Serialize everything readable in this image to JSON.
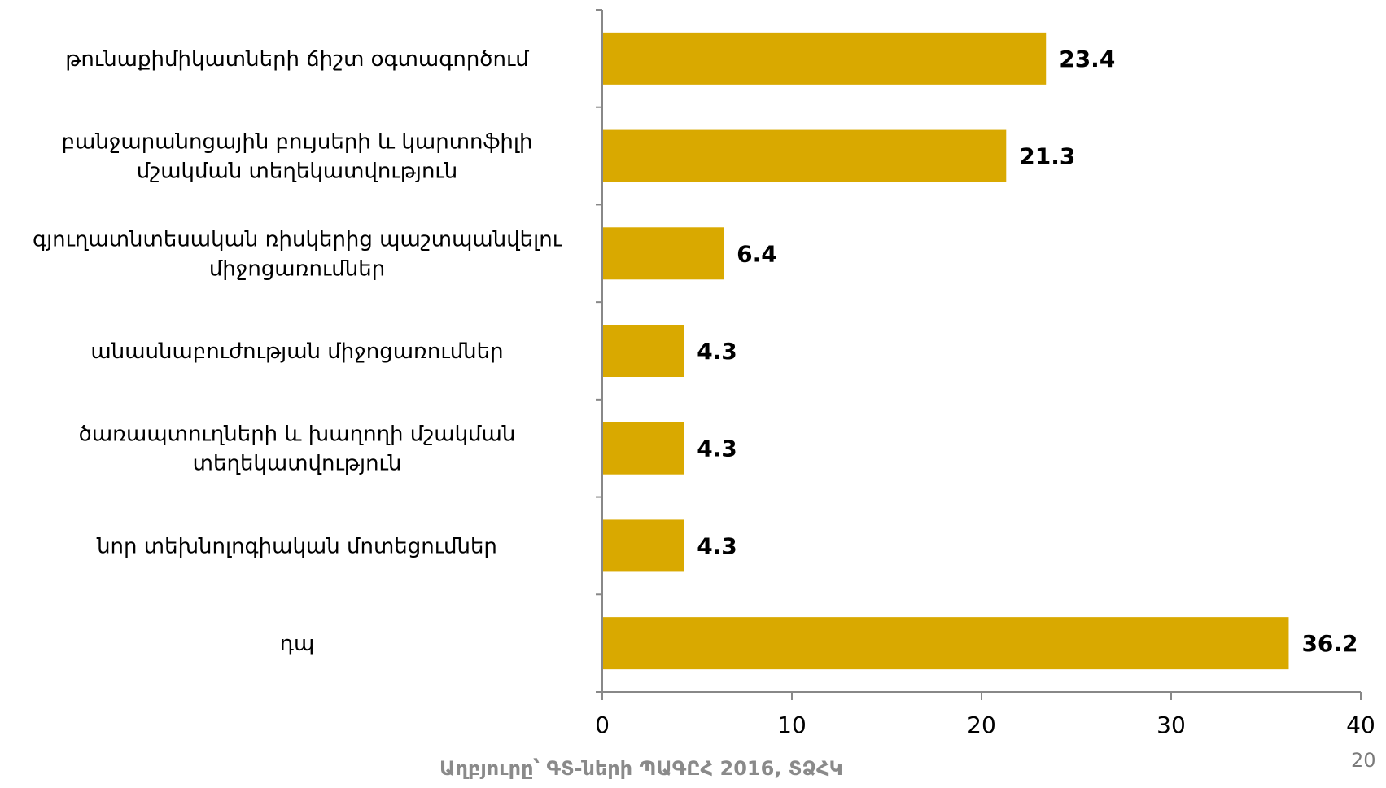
{
  "chart_data": {
    "type": "bar",
    "orientation": "horizontal",
    "categories": [
      [
        "թունաքիմիկատների ճիշտ օգտագործում"
      ],
      [
        "բանջարանոցային բույսերի և կարտոֆիլի",
        "մշակման տեղեկատվություն"
      ],
      [
        "գյուղատնտեսական ռիսկերից պաշտպանվելու",
        "միջոցառումներ"
      ],
      [
        "անասնաբուժության միջոցառումներ"
      ],
      [
        "ծառապտուղների և խաղողի մշակման",
        "տեղեկատվություն"
      ],
      [
        "նոր տեխնոլոգիական մոտեցումներ"
      ],
      [
        "դպ"
      ]
    ],
    "values": [
      23.4,
      21.3,
      6.4,
      4.3,
      4.3,
      4.3,
      36.2
    ],
    "value_labels": [
      "23.4",
      "21.3",
      "6.4",
      "4.3",
      "4.3",
      "4.3",
      "36.2"
    ],
    "xlim": [
      0,
      40
    ],
    "xticks": [
      0,
      10,
      20,
      30,
      40
    ],
    "tick_labels": [
      "0",
      "10",
      "20",
      "30",
      "40"
    ],
    "title": "",
    "xlabel": "",
    "ylabel": "",
    "grid": false,
    "legend": "none",
    "colors": {
      "bar": "#d9a900",
      "axis": "#888888"
    }
  },
  "footer": {
    "source": "Աղբյուրը՝ ԳՏ-ների ՊԱԳԸՀ 2016, ՏՁՀԿ",
    "page_number": "20"
  }
}
